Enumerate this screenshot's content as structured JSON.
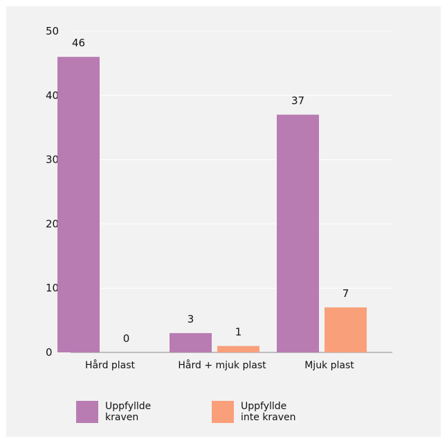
{
  "chart_data": {
    "type": "bar",
    "categories": [
      "Hård plast",
      "Hård + mjuk plast",
      "Mjuk plast"
    ],
    "series": [
      {
        "name": "Uppfyllde kraven",
        "values": [
          46,
          3,
          37
        ],
        "color": "#b87cb2"
      },
      {
        "name": "Uppfyllde inte kraven",
        "values": [
          0,
          1,
          7
        ],
        "color": "#f9a07a"
      }
    ],
    "data_labels": [
      [
        "46",
        "3",
        "37"
      ],
      [
        "0",
        "1",
        "7"
      ]
    ],
    "ylim": [
      0,
      50
    ],
    "yticks": [
      0,
      10,
      20,
      30,
      40,
      50
    ],
    "grid": true,
    "legend_placement": "bottom-left"
  },
  "legend": [
    {
      "lines": [
        "Uppfyllde",
        "kraven"
      ],
      "color": "#b87cb2"
    },
    {
      "lines": [
        "Uppfyllde",
        "inte kraven"
      ],
      "color": "#f9a07a"
    }
  ]
}
